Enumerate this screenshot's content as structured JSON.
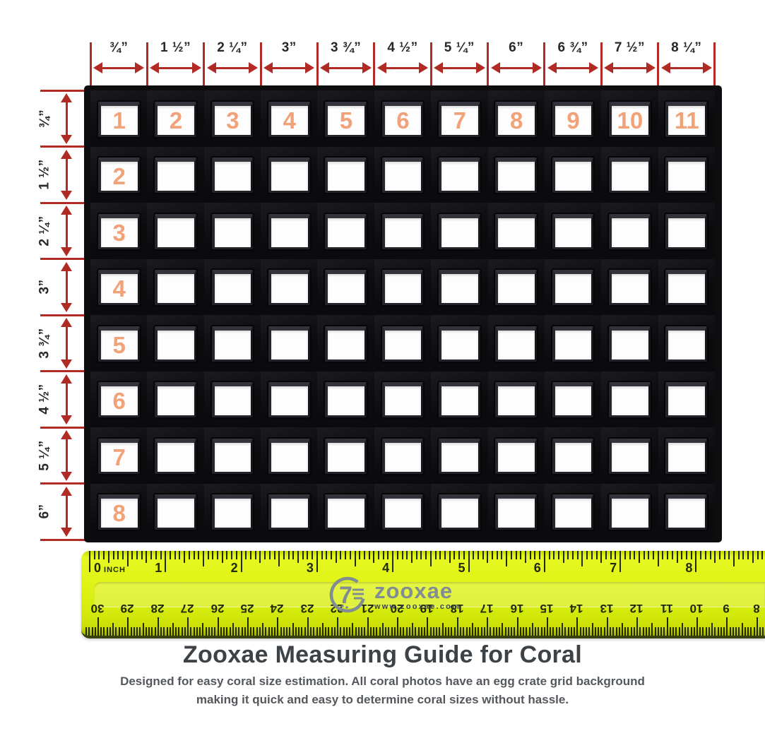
{
  "page": {
    "title": "Zooxae Measuring Guide for Coral",
    "subtitle_line1": "Designed for easy coral size estimation. All coral photos have an egg crate grid background",
    "subtitle_line2": "making it quick and easy to determine coral sizes without hassle."
  },
  "colors": {
    "arrow_red": "#b02b24",
    "cell_number_orange": "#f2a278",
    "grid_black": "#0d0d10",
    "ruler_yellow": "#def313",
    "ruler_tick": "#222a08",
    "title_color": "#3d4247",
    "subtitle_color": "#54585c",
    "logo_gray": "#828c93",
    "logo_url_color": "#39424a"
  },
  "grid": {
    "columns": 11,
    "rows": 8,
    "top_labels": [
      "¾”",
      "1 ½”",
      "2 ¼”",
      "3”",
      "3 ¾”",
      "4 ½”",
      "5 ¼”",
      "6”",
      "6 ¾”",
      "7 ½”",
      "8 ¼”"
    ],
    "left_labels": [
      "¾”",
      "1 ½”",
      "2 ¼”",
      "3”",
      "3 ¾”",
      "4 ½”",
      "5 ¼”",
      "6”"
    ],
    "first_row_numbers": [
      "1",
      "2",
      "3",
      "4",
      "5",
      "6",
      "7",
      "8",
      "9",
      "10",
      "11"
    ],
    "first_column_numbers": [
      "2",
      "3",
      "4",
      "5",
      "6",
      "7",
      "8"
    ]
  },
  "ruler": {
    "unit_label": "INCH",
    "inch_labels": [
      "0",
      "1",
      "2",
      "3",
      "4",
      "5",
      "6",
      "7",
      "8"
    ],
    "cm_labels": [
      "30",
      "29",
      "28",
      "27",
      "26",
      "25",
      "24",
      "23",
      "22",
      "21",
      "20",
      "19",
      "18",
      "17",
      "16",
      "15",
      "14",
      "13",
      "12",
      "11",
      "10",
      "9",
      "8"
    ],
    "logo_mark": "7",
    "logo_text": "zooxae",
    "logo_url": "www.zooxae.com"
  }
}
